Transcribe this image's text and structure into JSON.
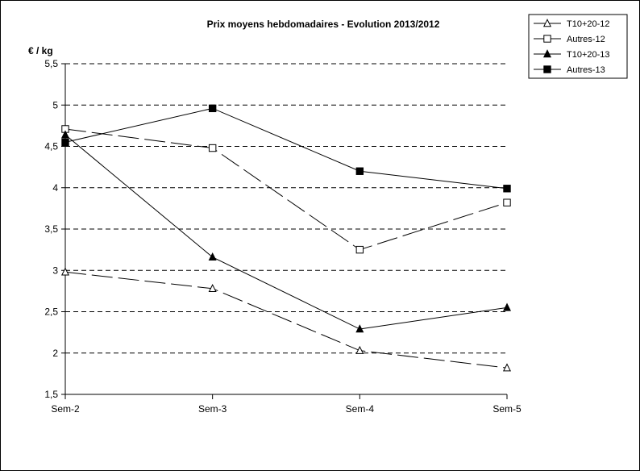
{
  "chart_data": {
    "type": "line",
    "title": "Prix moyens hebdomadaires - Evolution  2013/2012",
    "xlabel": "",
    "ylabel": "€ / kg",
    "categories": [
      "Sem-2",
      "Sem-3",
      "Sem-4",
      "Sem-5"
    ],
    "ylim": [
      1.5,
      5.5
    ],
    "yticks": [
      1.5,
      2,
      2.5,
      3,
      3.5,
      4,
      4.5,
      5,
      5.5
    ],
    "ytick_labels": [
      "1,5",
      "2",
      "2,5",
      "3",
      "3,5",
      "4",
      "4,5",
      "5",
      "5,5"
    ],
    "grid": "horizontal dashed",
    "legend_position": "top-right",
    "series": [
      {
        "name": "T10+20-12",
        "values": [
          2.98,
          2.78,
          2.03,
          1.82
        ],
        "marker": "triangle-open",
        "dash": "long-dash",
        "color": "#000000"
      },
      {
        "name": "Autres-12",
        "values": [
          4.71,
          4.48,
          3.25,
          3.82
        ],
        "marker": "square-open",
        "dash": "long-dash",
        "color": "#000000"
      },
      {
        "name": "T10+20-13",
        "values": [
          4.64,
          3.16,
          2.29,
          2.55
        ],
        "marker": "triangle-filled",
        "dash": "solid",
        "color": "#000000"
      },
      {
        "name": "Autres-13",
        "values": [
          4.55,
          4.96,
          4.2,
          3.99
        ],
        "marker": "square-filled",
        "dash": "solid",
        "color": "#000000"
      }
    ]
  }
}
